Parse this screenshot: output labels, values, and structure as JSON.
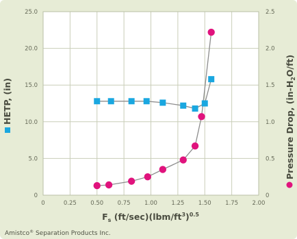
{
  "chart_data": {
    "type": "scatter",
    "xlabel_main": "F",
    "xlabel_sub": "s",
    "xlabel_rest": " (ft/sec)(lbm/ft",
    "xlabel_sup1": "3",
    "xlabel_close": ")",
    "xlabel_sup2": "0.5",
    "ylabel_left": "HETP, (in)",
    "ylabel_right_a": "Pressure Drop, (in-H",
    "ylabel_right_sub": "2",
    "ylabel_right_b": "O/ft)",
    "xlim": [
      0,
      2.0
    ],
    "ylim_left": [
      0,
      25
    ],
    "ylim_right": [
      0,
      2.5
    ],
    "x_ticks": [
      "0",
      "0.25",
      "0.50",
      "0.75",
      "1.00",
      "1.25",
      "1.50",
      "1.75",
      "2.00"
    ],
    "x_tick_values": [
      0,
      0.25,
      0.5,
      0.75,
      1.0,
      1.25,
      1.5,
      1.75,
      2.0
    ],
    "y_left_ticks": [
      "0",
      "5.0",
      "10.0",
      "15.0",
      "20.0",
      "25.0"
    ],
    "y_left_tick_values": [
      0,
      5,
      10,
      15,
      20,
      25
    ],
    "y_right_ticks": [
      "0",
      "0.5",
      "1.0",
      "1.5",
      "2.0",
      "2.5"
    ],
    "y_right_tick_values": [
      0,
      0.5,
      1.0,
      1.5,
      2.0,
      2.5
    ],
    "grid": true,
    "series": [
      {
        "axis": "left",
        "marker": "square",
        "color": "#1aa7e0",
        "x": [
          0.5,
          0.63,
          0.82,
          0.96,
          1.11,
          1.3,
          1.41,
          1.5,
          1.56
        ],
        "y": [
          12.8,
          12.8,
          12.8,
          12.8,
          12.6,
          12.2,
          11.8,
          12.5,
          15.8
        ]
      },
      {
        "axis": "right",
        "marker": "circle",
        "color": "#e0137d",
        "x": [
          0.5,
          0.61,
          0.82,
          0.97,
          1.11,
          1.3,
          1.41,
          1.47,
          1.56
        ],
        "y": [
          0.13,
          0.14,
          0.19,
          0.25,
          0.35,
          0.48,
          0.67,
          1.07,
          2.22
        ]
      }
    ],
    "footer": "Amistco",
    "footer_reg": "®",
    "footer_rest": " Separation Products Inc."
  }
}
